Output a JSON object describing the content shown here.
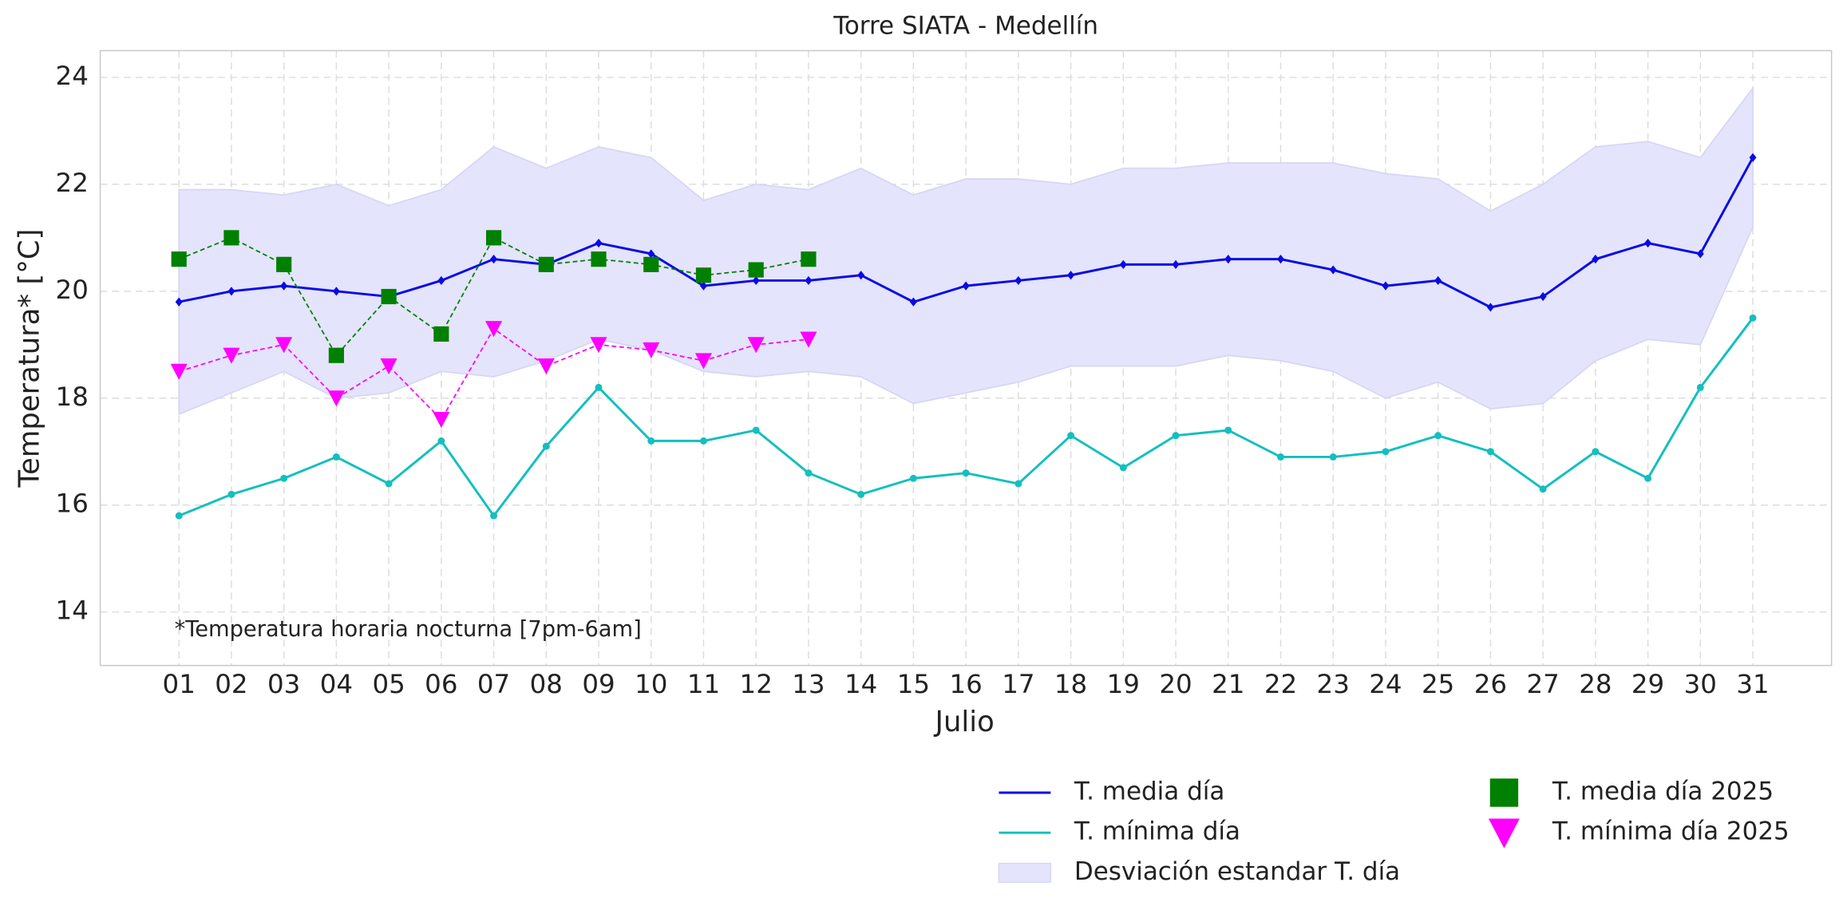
{
  "chart_data": {
    "type": "line",
    "title": "Torre SIATA - Medellín",
    "xlabel": "Julio",
    "ylabel": "Temperatura* [°C]",
    "annotation": "*Temperatura horaria nocturna [7pm-6am]",
    "categories": [
      "01",
      "02",
      "03",
      "04",
      "05",
      "06",
      "07",
      "08",
      "09",
      "10",
      "11",
      "12",
      "13",
      "14",
      "15",
      "16",
      "17",
      "18",
      "19",
      "20",
      "21",
      "22",
      "23",
      "24",
      "25",
      "26",
      "27",
      "28",
      "29",
      "30",
      "31"
    ],
    "ylim": [
      13,
      24.5
    ],
    "yticks": [
      14,
      16,
      18,
      20,
      22,
      24
    ],
    "grid": true,
    "legend": "lower right",
    "band": {
      "name": "Desviación estandar T. día",
      "color": "#e4e4fd",
      "upper": [
        21.9,
        21.9,
        21.8,
        22.0,
        21.6,
        21.9,
        22.7,
        22.3,
        22.7,
        22.5,
        21.7,
        22.0,
        21.9,
        22.3,
        21.8,
        22.1,
        22.1,
        22.0,
        22.3,
        22.3,
        22.4,
        22.4,
        22.4,
        22.2,
        22.1,
        21.5,
        22.0,
        22.7,
        22.8,
        22.5,
        23.8
      ],
      "lower": [
        17.7,
        18.1,
        18.5,
        18.0,
        18.1,
        18.5,
        18.4,
        18.7,
        19.1,
        18.9,
        18.5,
        18.4,
        18.5,
        18.4,
        17.9,
        18.1,
        18.3,
        18.6,
        18.6,
        18.6,
        18.8,
        18.7,
        18.5,
        18.0,
        18.3,
        17.8,
        17.9,
        18.7,
        19.1,
        19.0,
        21.2
      ]
    },
    "series": [
      {
        "name": "T. media día",
        "color": "#0a0ae6",
        "line": "solid",
        "marker": "diamond",
        "values": [
          19.8,
          20.0,
          20.1,
          20.0,
          19.9,
          20.2,
          20.6,
          20.5,
          20.9,
          20.7,
          20.1,
          20.2,
          20.2,
          20.3,
          19.8,
          20.1,
          20.2,
          20.3,
          20.5,
          20.5,
          20.6,
          20.6,
          20.4,
          20.1,
          20.2,
          19.7,
          19.9,
          20.6,
          20.9,
          20.7,
          22.5
        ]
      },
      {
        "name": "T. mínima día",
        "color": "#13bfbf",
        "line": "solid",
        "marker": "circle",
        "values": [
          15.8,
          16.2,
          16.5,
          16.9,
          16.4,
          17.2,
          15.8,
          17.1,
          18.2,
          17.2,
          17.2,
          17.4,
          16.6,
          16.2,
          16.5,
          16.6,
          16.4,
          17.3,
          16.7,
          17.3,
          17.4,
          16.9,
          16.9,
          17.0,
          17.3,
          17.0,
          16.3,
          17.0,
          16.5,
          18.2,
          19.5
        ]
      },
      {
        "name": "T. media día 2025",
        "color": "#008000",
        "line": "dashed",
        "marker": "square",
        "values": [
          20.6,
          21.0,
          20.5,
          18.8,
          19.9,
          19.2,
          21.0,
          20.5,
          20.6,
          20.5,
          20.3,
          20.4,
          20.6,
          null,
          null,
          null,
          null,
          null,
          null,
          null,
          null,
          null,
          null,
          null,
          null,
          null,
          null,
          null,
          null,
          null,
          null
        ]
      },
      {
        "name": "T. mínima día 2025",
        "color": "#ff00ff",
        "line": "dashed",
        "marker": "triangle",
        "values": [
          18.5,
          18.8,
          19.0,
          18.0,
          18.6,
          17.6,
          19.3,
          18.6,
          19.0,
          18.9,
          18.7,
          19.0,
          19.1,
          null,
          null,
          null,
          null,
          null,
          null,
          null,
          null,
          null,
          null,
          null,
          null,
          null,
          null,
          null,
          null,
          null,
          null
        ]
      }
    ]
  }
}
